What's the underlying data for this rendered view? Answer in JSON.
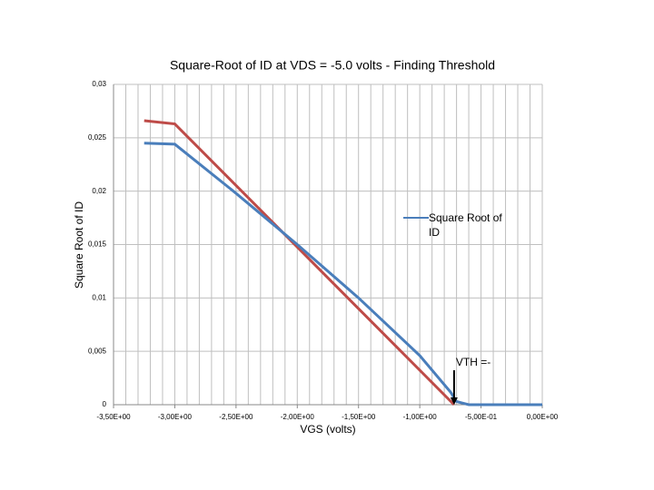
{
  "chart_data": {
    "type": "line",
    "title": "Square-Root of ID at VDS = -5.0 volts - Finding Threshold",
    "x_label": "VGS (volts)",
    "y_label": "Square Root of ID",
    "xlim": [
      -3.5,
      0
    ],
    "ylim": [
      0,
      0.03
    ],
    "xticks": [
      {
        "value": -3.5,
        "label": "-3,50E+00"
      },
      {
        "value": -3.0,
        "label": "-3,00E+00"
      },
      {
        "value": -2.5,
        "label": "-2,50E+00"
      },
      {
        "value": -2.0,
        "label": "-2,00E+00"
      },
      {
        "value": -1.5,
        "label": "-1,50E+00"
      },
      {
        "value": -1.0,
        "label": "-1,00E+00"
      },
      {
        "value": -0.5,
        "label": "-5,00E-01"
      },
      {
        "value": 0,
        "label": "0,00E+00"
      }
    ],
    "yticks": [
      0,
      {
        "value": 0.005,
        "label": "0,005"
      },
      {
        "value": 0.01,
        "label": "0,01"
      },
      {
        "value": 0.015,
        "label": "0,015"
      },
      {
        "value": 0.02,
        "label": "0,02"
      },
      {
        "value": 0.025,
        "label": "0,025"
      },
      {
        "value": 0.03,
        "label": "0,03"
      }
    ],
    "grid": true,
    "minor_grid_step": 0.1,
    "series": [
      {
        "name": "Square Root of ID",
        "color": "#4a7ebb",
        "x": [
          -3.25,
          -3.0,
          -2.5,
          -2.0,
          -1.5,
          -1.0,
          -0.75,
          -0.7,
          -0.6,
          0
        ],
        "values": [
          0.0245,
          0.0244,
          0.0198,
          0.015,
          0.01,
          0.0046,
          0.0012,
          0.0003,
          0,
          0
        ]
      },
      {
        "color": "#be4b48",
        "x": [
          -3.25,
          -3.0,
          -0.72
        ],
        "values": [
          0.0266,
          0.0263,
          0
        ]
      }
    ],
    "annotation": {
      "text": "VTH =-",
      "x": -0.72
    }
  }
}
